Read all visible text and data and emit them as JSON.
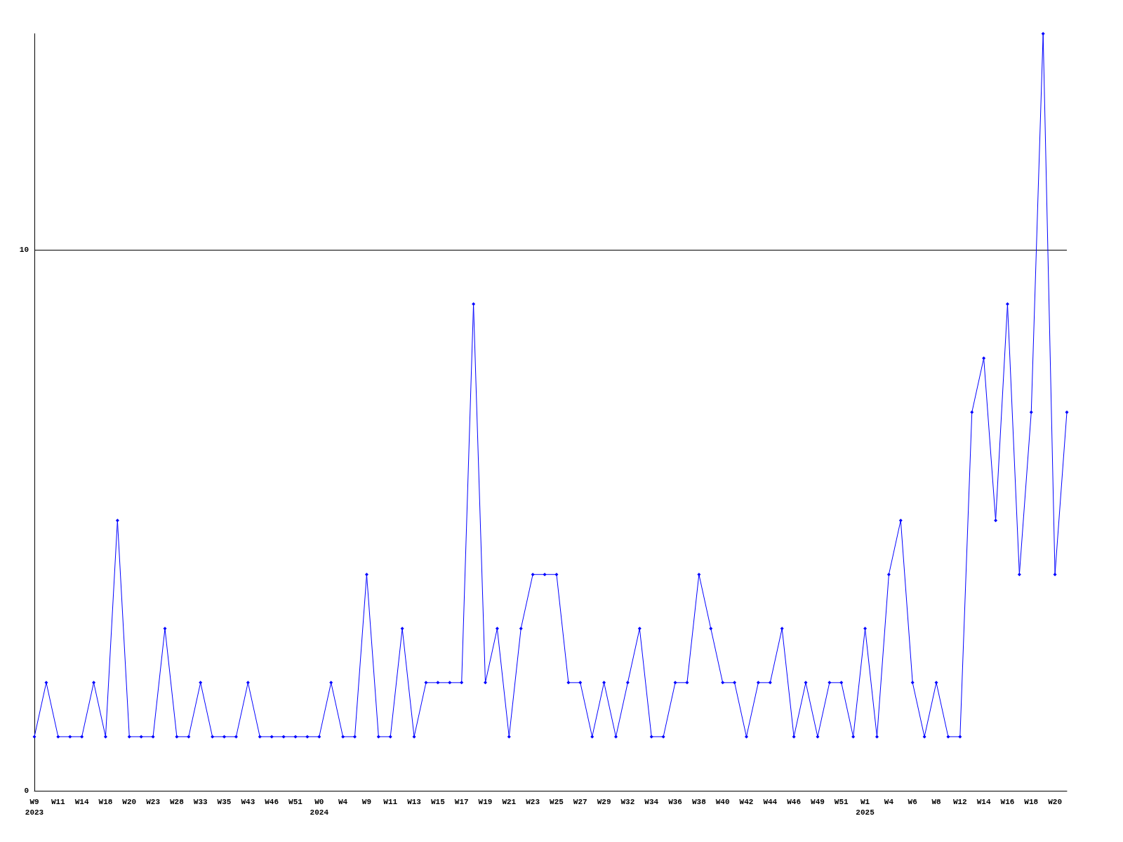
{
  "chart_data": {
    "type": "line",
    "categories": [
      "W9\n2023",
      null,
      "W11",
      null,
      "W14",
      null,
      "W18",
      null,
      "W20",
      null,
      "W23",
      null,
      "W28",
      null,
      "W33",
      null,
      "W35",
      null,
      "W43",
      null,
      "W46",
      null,
      "W51",
      null,
      "W0\n2024",
      null,
      "W4",
      null,
      "W9",
      null,
      "W11",
      null,
      "W13",
      null,
      "W15",
      null,
      "W17",
      null,
      "W19",
      null,
      "W21",
      null,
      "W23",
      null,
      "W25",
      null,
      "W27",
      null,
      "W29",
      null,
      "W32",
      null,
      "W34",
      null,
      "W36",
      null,
      "W38",
      null,
      "W40",
      null,
      "W42",
      null,
      "W44",
      null,
      "W46",
      null,
      "W49",
      null,
      "W51",
      null,
      "W1\n2025",
      null,
      "W4",
      null,
      "W6",
      null,
      "W8",
      null,
      "W12",
      null,
      "W14",
      null,
      "W16",
      null,
      "W18",
      null,
      "W20",
      null
    ],
    "series": [
      {
        "color": "#0000ff",
        "values": [
          1,
          2,
          1,
          1,
          1,
          2,
          1,
          5,
          1,
          1,
          1,
          3,
          1,
          1,
          2,
          1,
          1,
          1,
          2,
          1,
          1,
          1,
          1,
          1,
          1,
          2,
          1,
          1,
          4,
          1,
          1,
          3,
          1,
          2,
          2,
          2,
          2,
          9,
          2,
          3,
          1,
          3,
          4,
          4,
          4,
          2,
          2,
          1,
          2,
          1,
          2,
          3,
          1,
          1,
          2,
          2,
          4,
          3,
          2,
          2,
          1,
          2,
          2,
          3,
          1,
          2,
          1,
          2,
          2,
          1,
          3,
          1,
          4,
          5,
          2,
          1,
          2,
          1,
          1,
          7,
          8,
          5,
          9,
          4,
          7,
          14,
          4,
          7
        ]
      }
    ],
    "ylim": [
      0,
      14
    ],
    "yticks": [
      0,
      10
    ],
    "grid": "y",
    "marker": "diamond",
    "line_style": "solid"
  }
}
